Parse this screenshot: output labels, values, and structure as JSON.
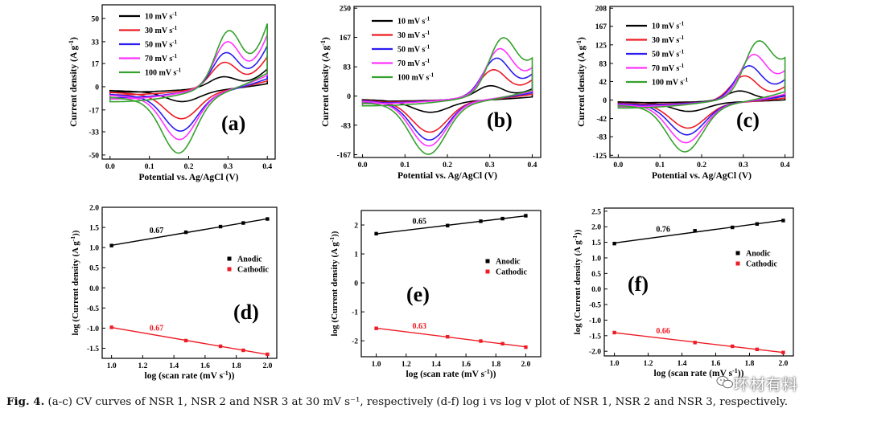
{
  "caption": {
    "label": "Fig. 4.",
    "text": "(a-c) CV curves of NSR 1, NSR 2 and NSR 3 at 30 mV s⁻¹, respectively (d-f) log i vs log v plot of NSR 1, NSR 2 and NSR 3, respectively."
  },
  "watermark": {
    "text": "环材有料",
    "icon": "wechat-icon"
  },
  "chart_data": [
    {
      "panel": "(a)",
      "type": "line",
      "xlabel": "Potential vs. Ag/AgCl (V)",
      "ylabel": "Current density (A g⁻¹)",
      "xlim": [
        -0.02,
        0.42
      ],
      "ylim": [
        -53,
        60
      ],
      "xticks": [
        "0.0",
        "0.1",
        "0.2",
        "0.3",
        "0.4"
      ],
      "yticks": [
        "50",
        "33",
        "17",
        "0",
        "-17",
        "-33",
        "-50"
      ],
      "peak_ox": {
        "x0": 0.285,
        "x": 0.3,
        "y": [
          10,
          24,
          33,
          42,
          52
        ]
      },
      "peak_red": {
        "x0": 0.185,
        "x": 0.175,
        "y": [
          -8,
          -20,
          -28,
          -34,
          -43
        ]
      },
      "series": [
        {
          "name": "10 mV s⁻¹",
          "color": "#000000",
          "start": -4,
          "end": 13
        },
        {
          "name": "30 mV s⁻¹",
          "color": "#ee1c25",
          "start": -6,
          "end": 22
        },
        {
          "name": "50 mV s⁻¹",
          "color": "#2b1cf0",
          "start": -8,
          "end": 30
        },
        {
          "name": "70 mV s⁻¹",
          "color": "#ff33ff",
          "start": -9,
          "end": 38
        },
        {
          "name": "100 mV s⁻¹",
          "color": "#36a12e",
          "start": -11,
          "end": 46
        }
      ]
    },
    {
      "panel": "(b)",
      "type": "line",
      "xlabel": "Potential vs. Ag/AgCl (V)",
      "ylabel": "Current density (A g⁻¹)",
      "xlim": [
        -0.02,
        0.42
      ],
      "ylim": [
        -175,
        255
      ],
      "xticks": [
        "0.0",
        "0.1",
        "0.2",
        "0.3",
        "0.4"
      ],
      "yticks": [
        "250",
        "167",
        "83",
        "0",
        "-83",
        "-167"
      ],
      "peak_ox": {
        "x0": 0.3,
        "x": 0.33,
        "y": [
          50,
          108,
          150,
          182,
          220
        ]
      },
      "peak_red": {
        "x0": 0.16,
        "x": 0.155,
        "y": [
          -35,
          -95,
          -118,
          -135,
          -155
        ]
      },
      "series": [
        {
          "name": "10 mV s⁻¹",
          "color": "#000000",
          "start": -15,
          "end": 20
        },
        {
          "name": "30 mV s⁻¹",
          "color": "#ee1c25",
          "start": -18,
          "end": 45
        },
        {
          "name": "50 mV s⁻¹",
          "color": "#2b1cf0",
          "start": -20,
          "end": 60
        },
        {
          "name": "70 mV s⁻¹",
          "color": "#ff33ff",
          "start": -22,
          "end": 75
        },
        {
          "name": "100 mV s⁻¹",
          "color": "#36a12e",
          "start": -28,
          "end": 95
        }
      ]
    },
    {
      "panel": "(c)",
      "type": "line",
      "xlabel": "Potential vs. Ag/AgCl (V)",
      "ylabel": "Current density (A g⁻¹)",
      "xlim": [
        -0.02,
        0.42
      ],
      "ylim": [
        -130,
        212
      ],
      "xticks": [
        "0.0",
        "0.1",
        "0.2",
        "0.3",
        "0.4"
      ],
      "yticks": [
        "208",
        "167",
        "125",
        "83",
        "42",
        "0",
        "-42",
        "-83",
        "-125"
      ],
      "peak_ox": {
        "x0": 0.29,
        "x": 0.335,
        "y": [
          32,
          78,
          105,
          135,
          168
        ]
      },
      "peak_red": {
        "x0": 0.17,
        "x": 0.16,
        "y": [
          -22,
          -60,
          -75,
          -92,
          -112
        ]
      },
      "series": [
        {
          "name": "10 mV s⁻¹",
          "color": "#000000",
          "start": -6,
          "end": 12
        },
        {
          "name": "30 mV s⁻¹",
          "color": "#ee1c25",
          "start": -10,
          "end": 30
        },
        {
          "name": "50 mV s⁻¹",
          "color": "#2b1cf0",
          "start": -12,
          "end": 45
        },
        {
          "name": "70 mV s⁻¹",
          "color": "#ff33ff",
          "start": -15,
          "end": 62
        },
        {
          "name": "100 mV s⁻¹",
          "color": "#36a12e",
          "start": -18,
          "end": 82
        }
      ]
    },
    {
      "panel": "(d)",
      "type": "scatter",
      "xlabel": "log (scan rate (mV s⁻¹))",
      "ylabel": "log (Current density (A g⁻¹))",
      "xlim": [
        0.94,
        2.06
      ],
      "ylim": [
        -1.75,
        2.0
      ],
      "xticks": [
        "1.0",
        "1.2",
        "1.4",
        "1.6",
        "1.8",
        "2.0"
      ],
      "yticks": [
        "2.0",
        "1.5",
        "1.0",
        "0.5",
        "0.0",
        "-0.5",
        "-1.0",
        "-1.5"
      ],
      "x": [
        1.0,
        1.477,
        1.699,
        1.845,
        2.0
      ],
      "series": [
        {
          "name": "Anodic",
          "color": "#000000",
          "values": [
            1.05,
            1.38,
            1.52,
            1.61,
            1.71
          ],
          "slope_label": "0.67"
        },
        {
          "name": "Cathodic",
          "color": "#ee1c25",
          "values": [
            -0.98,
            -1.31,
            -1.45,
            -1.55,
            -1.65
          ],
          "slope_label": "0.67"
        }
      ]
    },
    {
      "panel": "(e)",
      "type": "scatter",
      "xlabel": "log (scan rate (mV s⁻¹))",
      "ylabel": "log (Current density (A g⁻¹))",
      "xlim": [
        0.9,
        2.1
      ],
      "ylim": [
        -2.55,
        2.5
      ],
      "xticks": [
        "1.0",
        "1.2",
        "1.4",
        "1.6",
        "1.8",
        "2.0"
      ],
      "yticks": [
        "2",
        "1",
        "0",
        "-1",
        "-2"
      ],
      "x": [
        1.0,
        1.477,
        1.699,
        1.845,
        2.0
      ],
      "series": [
        {
          "name": "Anodic",
          "color": "#000000",
          "values": [
            1.7,
            1.98,
            2.13,
            2.22,
            2.32
          ],
          "slope_label": "0.65"
        },
        {
          "name": "Cathodic",
          "color": "#ee1c25",
          "values": [
            -1.57,
            -1.86,
            -2.01,
            -2.1,
            -2.22
          ],
          "slope_label": "0.63"
        }
      ]
    },
    {
      "panel": "(f)",
      "type": "scatter",
      "xlabel": "log (scan rate (mV s⁻¹))",
      "ylabel": "log (Current density (A g⁻¹))",
      "xlim": [
        0.94,
        2.06
      ],
      "ylim": [
        -2.15,
        2.6
      ],
      "xticks": [
        "1.0",
        "1.2",
        "1.4",
        "1.6",
        "1.8",
        "2.0"
      ],
      "yticks": [
        "2.5",
        "2.0",
        "1.5",
        "1.0",
        "0.5",
        "0.0",
        "-0.5",
        "-1.0",
        "-1.5",
        "-2.0"
      ],
      "x": [
        1.0,
        1.477,
        1.699,
        1.845,
        2.0
      ],
      "series": [
        {
          "name": "Anodic",
          "color": "#000000",
          "values": [
            1.46,
            1.87,
            1.98,
            2.09,
            2.2
          ],
          "slope_label": "0.76"
        },
        {
          "name": "Cathodic",
          "color": "#ee1c25",
          "values": [
            -1.4,
            -1.72,
            -1.84,
            -1.94,
            -2.04
          ],
          "slope_label": "0.66"
        }
      ]
    }
  ]
}
